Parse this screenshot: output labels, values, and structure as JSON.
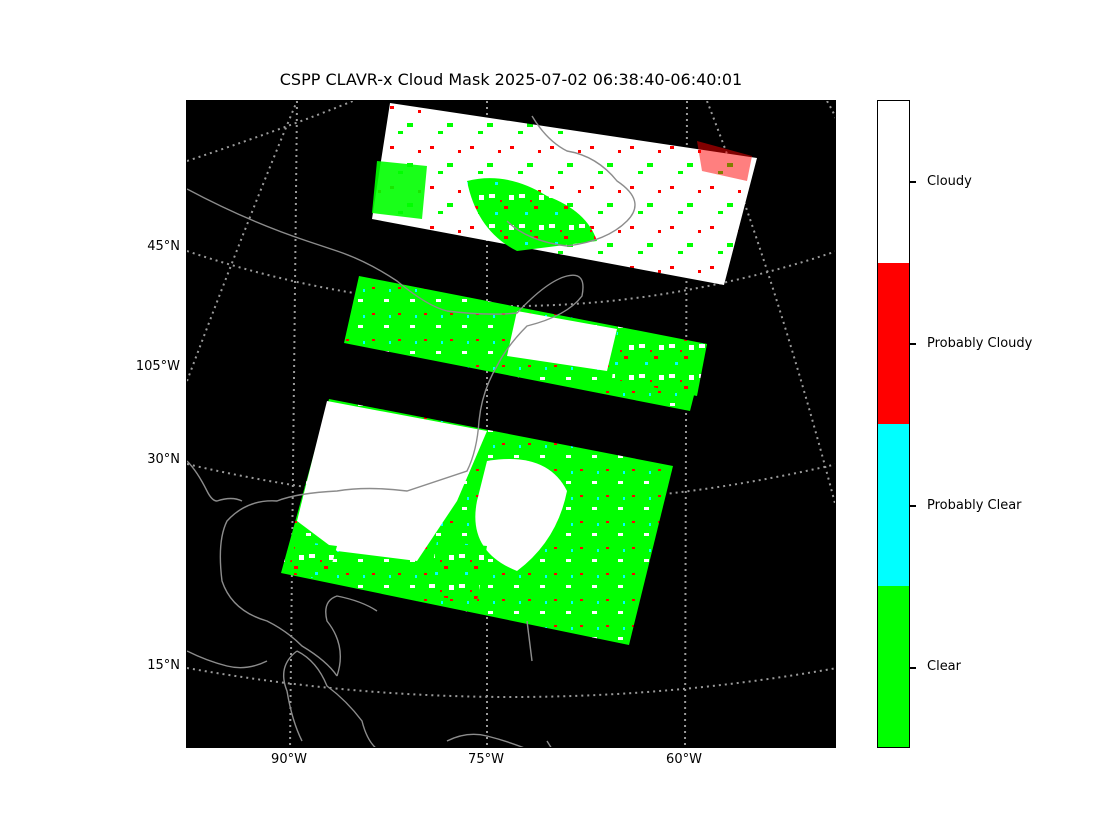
{
  "title": "CSPP CLAVR-x Cloud Mask 2025-07-02 06:38:40-06:40:01",
  "latitude_labels": [
    "45°N",
    "105°W",
    "30°N",
    "15°N"
  ],
  "longitude_labels": [
    "90°W",
    "75°W",
    "60°W"
  ],
  "colorbar": {
    "categories": [
      {
        "label": "Cloudy",
        "color": "#ffffff"
      },
      {
        "label": "Probably Cloudy",
        "color": "#ff0000"
      },
      {
        "label": "Probably Clear",
        "color": "#00ffff"
      },
      {
        "label": "Clear",
        "color": "#00ff00"
      }
    ]
  },
  "colors": {
    "background": "#000000",
    "coastline": "#8c8c8c",
    "gridline": "#9a9a9a"
  }
}
